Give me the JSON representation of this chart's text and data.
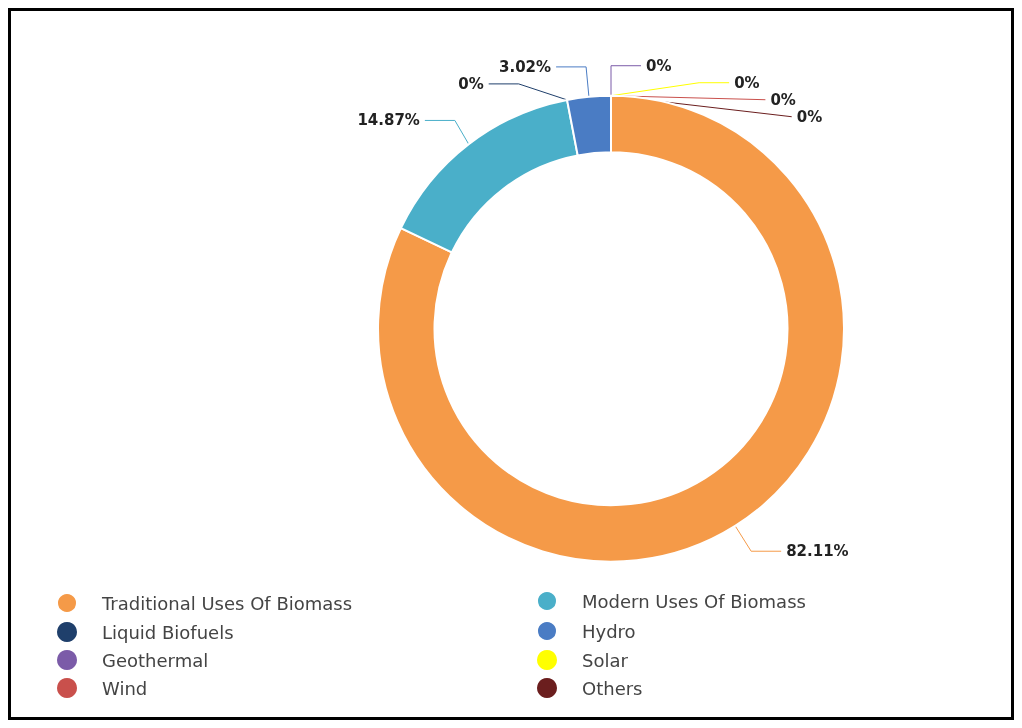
{
  "chart_data": {
    "type": "donut",
    "categories": [
      "Traditional Uses Of Biomass",
      "Modern Uses Of Biomass",
      "Liquid Biofuels",
      "Hydro",
      "Geothermal",
      "Solar",
      "Wind",
      "Others"
    ],
    "values": [
      82.11,
      14.87,
      0,
      3.02,
      0,
      0,
      0,
      0
    ],
    "value_labels": [
      "82.11%",
      "14.87%",
      "0%",
      "3.02%",
      "0%",
      "0%",
      "0%",
      "0%"
    ],
    "colors": [
      "#f59a48",
      "#4aafc9",
      "#1f3f6b",
      "#4a7cc4",
      "#7b5ba8",
      "#ffff00",
      "#c9504c",
      "#6b1e1e"
    ],
    "legend": "bottom"
  }
}
